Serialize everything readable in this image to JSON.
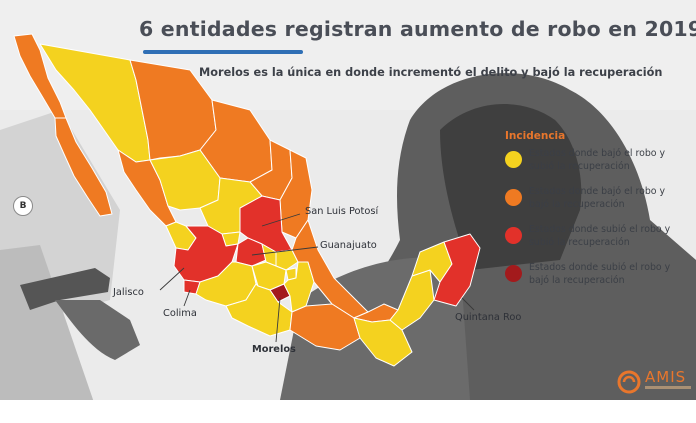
{
  "title": "6 entidades registran aumento de robo en 2019",
  "subtitle": "Morelos es la única en donde incrementó el delito y bajó la recuperación",
  "legend": {
    "title": "Incidencia",
    "items": [
      {
        "label_line1": "Estados donde bajó el robo y",
        "label_line2": "subió la recuperación",
        "color": "#f4d21f"
      },
      {
        "label_line1": "Estados donde bajó el robo y",
        "label_line2": "bajó la recuperación",
        "color": "#ef7a22"
      },
      {
        "label_line1": "Estados donde subió el robo y",
        "label_line2": "subió la recuperación",
        "color": "#e2312a"
      },
      {
        "label_line1": "Estados donde subió el robo y",
        "label_line2": "bajó la recuperación",
        "color": "#a31a1c"
      }
    ]
  },
  "labels": {
    "san_luis_potosi": "San Luis Potosí",
    "guanajuato": "Guanajuato",
    "jalisco": "Jalisco",
    "colima": "Colima",
    "morelos": "Morelos",
    "quintana_roo": "Quintana Roo"
  },
  "watermark": "B",
  "logo": {
    "text": "AMIS",
    "icon": "amis-logo-icon",
    "color": "#e8762c"
  },
  "colors": {
    "yellow": "#f4d21f",
    "orange": "#ef7a22",
    "red": "#e2312a",
    "darkred": "#a31a1c",
    "title_rule": "#2f6fb5"
  }
}
